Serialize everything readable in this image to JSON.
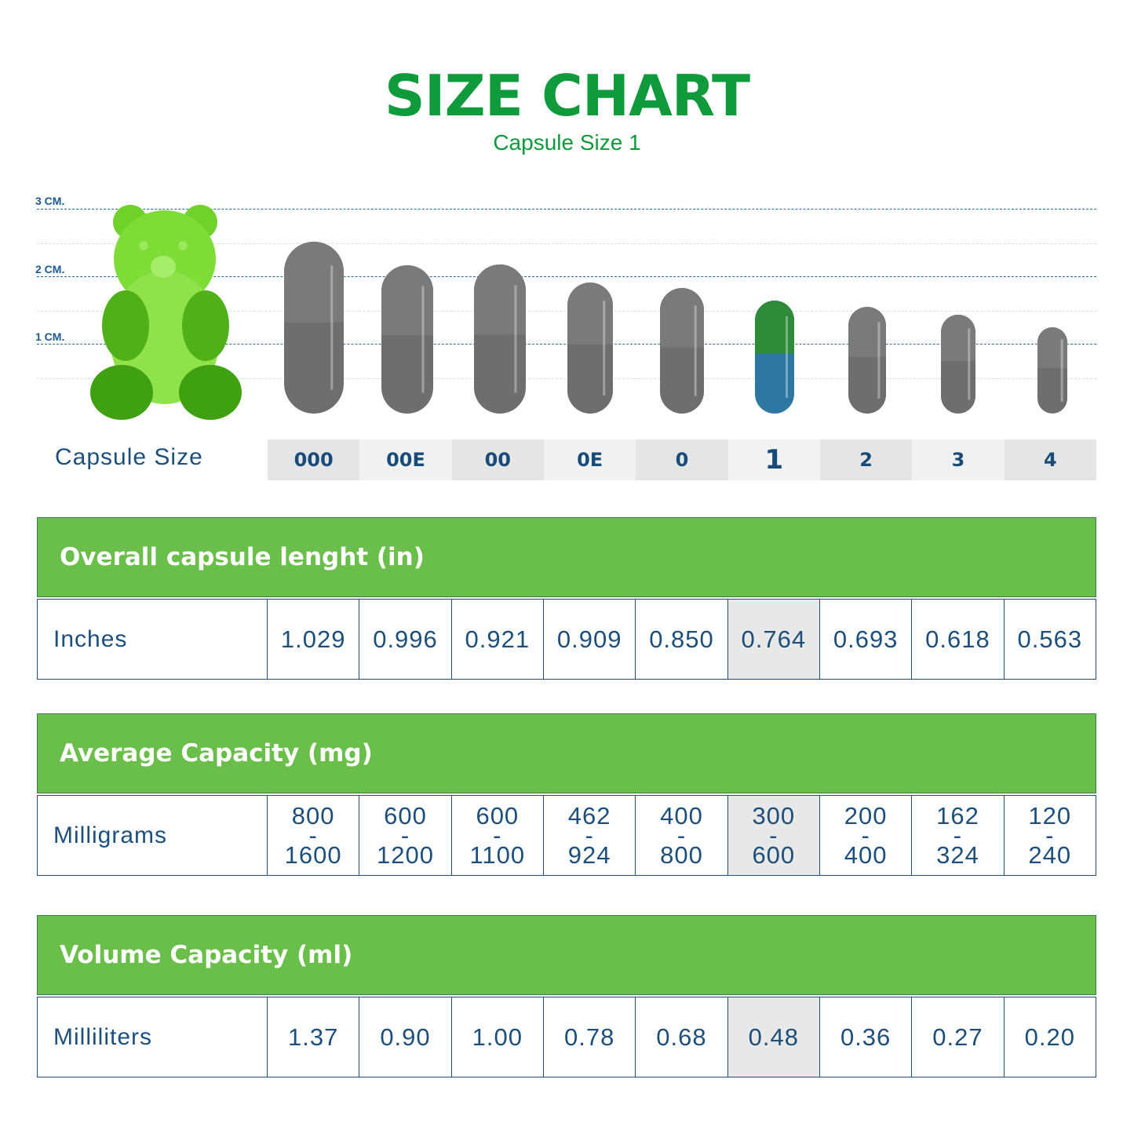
{
  "title": "SIZE CHART",
  "subtitle": "Capsule Size 1",
  "scale_labels": [
    "3 CM.",
    "2 CM.",
    "1 CM."
  ],
  "capsule_size_label": "Capsule Size",
  "sizes": [
    "000",
    "00E",
    "00",
    "0E",
    "0",
    "1",
    "2",
    "3",
    "4"
  ],
  "selected_index": 5,
  "colors": {
    "title": "#0f9a3c",
    "section_header": "#6abf4b",
    "text": "#1d4f7c",
    "capsule_gray": "#6e6e6e",
    "selected_cap": "#2f8a3a",
    "selected_body": "#2f77a3",
    "bear": "#6fd12a"
  },
  "illustration": "gummy-bear",
  "length": {
    "header": "Overall capsule lenght (in)",
    "label": "Inches",
    "values": [
      "1.029",
      "0.996",
      "0.921",
      "0.909",
      "0.850",
      "0.764",
      "0.693",
      "0.618",
      "0.563"
    ]
  },
  "capacity": {
    "header": "Average Capacity (mg)",
    "label": "Milligrams",
    "sep": "-",
    "values": [
      [
        "800",
        "1600"
      ],
      [
        "600",
        "1200"
      ],
      [
        "600",
        "1100"
      ],
      [
        "462",
        "924"
      ],
      [
        "400",
        "800"
      ],
      [
        "300",
        "600"
      ],
      [
        "200",
        "400"
      ],
      [
        "162",
        "324"
      ],
      [
        "120",
        "240"
      ]
    ]
  },
  "volume": {
    "header": "Volume Capacity (ml)",
    "label": "Milliliters",
    "values": [
      "1.37",
      "0.90",
      "1.00",
      "0.78",
      "0.68",
      "0.48",
      "0.36",
      "0.27",
      "0.20"
    ]
  }
}
